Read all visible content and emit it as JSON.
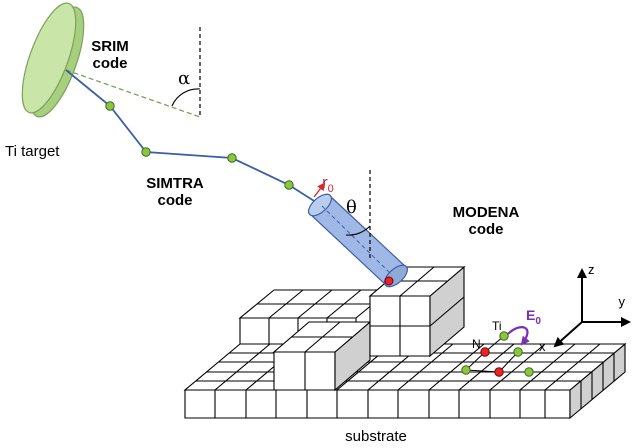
{
  "labels": {
    "srim_line1": "SRIM",
    "srim_line2": "code",
    "alpha": "α",
    "ti_target": "Ti target",
    "simtra_line1": "SIMTRA",
    "simtra_line2": "code",
    "r0_main": "r",
    "r0_sub": "0",
    "theta": "θ",
    "modena_line1": "MODENA",
    "modena_line2": "code",
    "axis_z": "z",
    "axis_x": "x",
    "axis_y": "y",
    "e0_main": "E",
    "e0_sub": "0",
    "ti_atom": "Ti",
    "n_atom": "N",
    "substrate": "substrate"
  },
  "colors": {
    "target_fill": "#c9e6a8",
    "target_edge": "#7aa35a",
    "trajectory": "#3a5fa8",
    "node_green": "#8cc63f",
    "node_red": "#e8262a",
    "cylinder_fill": "#9fb8e6",
    "cylinder_edge": "#3f5fa5",
    "r0_color": "#d9262a",
    "e0_color": "#7a2fb5",
    "cube_side": "#d0d0d0"
  },
  "icons": {
    "target": "disc-target-icon",
    "beam": "cylinder-beam-icon",
    "axes": "xyz-axes-icon"
  }
}
